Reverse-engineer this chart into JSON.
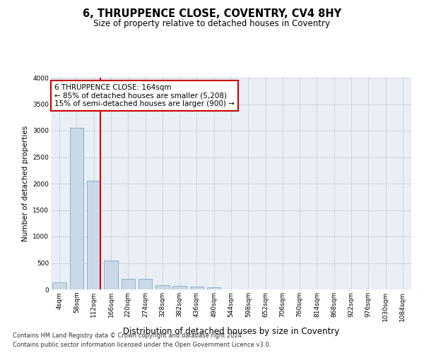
{
  "title": "6, THRUPPENCE CLOSE, COVENTRY, CV4 8HY",
  "subtitle": "Size of property relative to detached houses in Coventry",
  "xlabel": "Distribution of detached houses by size in Coventry",
  "ylabel": "Number of detached properties",
  "footnote1": "Contains HM Land Registry data © Crown copyright and database right 2024.",
  "footnote2": "Contains public sector information licensed under the Open Government Licence v3.0.",
  "bar_color": "#c9d9e8",
  "bar_edge_color": "#7aaabf",
  "grid_color": "#c8d0dc",
  "annotation_box_color": "#cc0000",
  "vline_color": "#cc0000",
  "categories": [
    "4sqm",
    "58sqm",
    "112sqm",
    "166sqm",
    "220sqm",
    "274sqm",
    "328sqm",
    "382sqm",
    "436sqm",
    "490sqm",
    "544sqm",
    "598sqm",
    "652sqm",
    "706sqm",
    "760sqm",
    "814sqm",
    "868sqm",
    "922sqm",
    "976sqm",
    "1030sqm",
    "1084sqm"
  ],
  "values": [
    130,
    3050,
    2050,
    550,
    200,
    200,
    80,
    70,
    50,
    40,
    0,
    0,
    0,
    0,
    0,
    0,
    0,
    0,
    0,
    0,
    0
  ],
  "ylim": [
    0,
    4000
  ],
  "yticks": [
    0,
    500,
    1000,
    1500,
    2000,
    2500,
    3000,
    3500,
    4000
  ],
  "property_bin_index": 2,
  "annotation_title": "6 THRUPPENCE CLOSE: 164sqm",
  "annotation_line1": "← 85% of detached houses are smaller (5,208)",
  "annotation_line2": "15% of semi-detached houses are larger (900) →",
  "background_color": "#ffffff",
  "plot_bg_color": "#eaeff6",
  "title_fontsize": 10.5,
  "subtitle_fontsize": 8.5,
  "ylabel_fontsize": 7.5,
  "xlabel_fontsize": 8.5,
  "tick_fontsize": 6.5,
  "annotation_fontsize": 7.5,
  "footnote_fontsize": 6
}
